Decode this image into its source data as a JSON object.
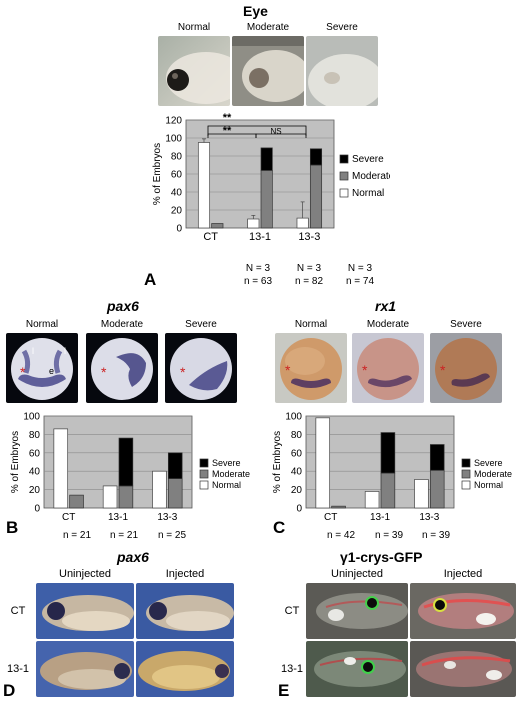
{
  "panel_a": {
    "title": "Eye",
    "photo_labels": [
      "Normal",
      "Moderate",
      "Severe"
    ],
    "group_info": [
      {
        "n_upper": "N = 3",
        "n_lower": "n = 63"
      },
      {
        "n_upper": "N = 3",
        "n_lower": "n = 82"
      },
      {
        "n_upper": "N = 3",
        "n_lower": "n = 74"
      }
    ],
    "sig": {
      "outer": "**",
      "left": "**",
      "right": "NS"
    },
    "letter": "A"
  },
  "panel_b": {
    "title": "pax6",
    "photo_labels": [
      "Normal",
      "Moderate",
      "Severe"
    ],
    "photo_marks": {
      "l1": "l",
      "l2": "l",
      "e": "e",
      "star": "*"
    },
    "group_info": [
      "n = 21",
      "n = 21",
      "n = 25"
    ],
    "letter": "B"
  },
  "panel_c": {
    "title": "rx1",
    "photo_labels": [
      "Normal",
      "Moderate",
      "Severe"
    ],
    "group_info": [
      "n = 42",
      "n = 39",
      "n = 39"
    ],
    "letter": "C"
  },
  "panel_d": {
    "title": "pax6",
    "col_labels": [
      "Uninjected",
      "Injected"
    ],
    "row_labels": [
      "CT",
      "13-1"
    ],
    "letter": "D"
  },
  "panel_e": {
    "title": "γ1-crys-GFP",
    "col_labels": [
      "Uninjected",
      "Injected"
    ],
    "row_labels": [
      "CT",
      "13-1"
    ],
    "letter": "E"
  },
  "chart_data": [
    {
      "type": "bar",
      "stacked": true,
      "ylabel": "% of Embryos",
      "ylim": [
        0,
        120
      ],
      "yticks": [
        0,
        20,
        40,
        60,
        80,
        100,
        120
      ],
      "categories": [
        "CT",
        "13-1",
        "13-3"
      ],
      "legend": [
        "Severe",
        "Moderate",
        "Normal"
      ],
      "legend_position": "right",
      "grid": true,
      "series": [
        {
          "name": "Normal",
          "values": [
            95,
            10,
            11
          ],
          "color": "#ffffff",
          "bar": "left"
        },
        {
          "name": "Moderate",
          "values": [
            5,
            64,
            70
          ],
          "color": "#808080",
          "bar": "right"
        },
        {
          "name": "Severe",
          "values": [
            0,
            25,
            18
          ],
          "color": "#000000",
          "bar": "right"
        }
      ],
      "error_bars": {
        "Normal": [
          4,
          4,
          18
        ]
      }
    },
    {
      "type": "bar",
      "stacked": true,
      "ylabel": "% of Embryos",
      "ylim": [
        0,
        100
      ],
      "yticks": [
        0,
        20,
        40,
        60,
        80,
        100
      ],
      "categories": [
        "CT",
        "13-1",
        "13-3"
      ],
      "legend": [
        "Severe",
        "Moderate",
        "Normal"
      ],
      "legend_position": "right",
      "grid": true,
      "series": [
        {
          "name": "Normal",
          "values": [
            86,
            24,
            40
          ],
          "color": "#ffffff",
          "bar": "left"
        },
        {
          "name": "Moderate",
          "values": [
            14,
            24,
            32
          ],
          "color": "#808080",
          "bar": "right"
        },
        {
          "name": "Severe",
          "values": [
            0,
            52,
            28
          ],
          "color": "#000000",
          "bar": "right"
        }
      ]
    },
    {
      "type": "bar",
      "stacked": true,
      "ylabel": "% of Embryos",
      "ylim": [
        0,
        100
      ],
      "yticks": [
        0,
        20,
        40,
        60,
        80,
        100
      ],
      "categories": [
        "CT",
        "13-1",
        "13-3"
      ],
      "legend": [
        "Severe",
        "Moderate",
        "Normal"
      ],
      "legend_position": "right",
      "grid": true,
      "series": [
        {
          "name": "Normal",
          "values": [
            98,
            18,
            31
          ],
          "color": "#ffffff",
          "bar": "left"
        },
        {
          "name": "Moderate",
          "values": [
            2,
            38,
            41
          ],
          "color": "#808080",
          "bar": "right"
        },
        {
          "name": "Severe",
          "values": [
            0,
            44,
            28
          ],
          "color": "#000000",
          "bar": "right"
        }
      ]
    }
  ]
}
